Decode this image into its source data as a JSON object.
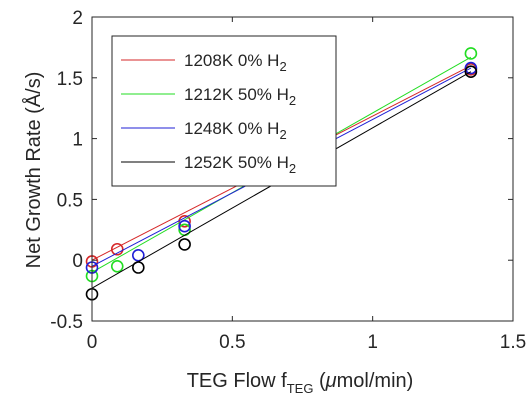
{
  "chart_data": {
    "type": "scatter",
    "xlabel": {
      "prefix": "TEG Flow f",
      "subscript": "TEG",
      "mu": "μ",
      "suffix": "mol/min)",
      "open_paren": " ("
    },
    "ylabel": "Net Growth Rate (Å/s)",
    "xlim": [
      0,
      1.5
    ],
    "ylim": [
      -0.5,
      2
    ],
    "x_ticks": [
      0,
      0.5,
      1,
      1.5
    ],
    "x_tick_labels": [
      "0",
      "0.5",
      "1",
      "1.5"
    ],
    "y_ticks": [
      -0.5,
      0,
      0.5,
      1,
      1.5,
      2
    ],
    "y_tick_labels": [
      "-0.5",
      "0",
      "0.5",
      "1",
      "1.5",
      "2"
    ],
    "grid": false,
    "legend_position": "top-left",
    "series": [
      {
        "name": "1208K  0% H",
        "name_sub": "2",
        "color": "#d62728",
        "points": [
          [
            0,
            -0.01
          ],
          [
            0.09,
            0.09
          ],
          [
            0.33,
            0.32
          ],
          [
            1.35,
            1.57
          ]
        ],
        "fit_line": [
          [
            0,
            0.0
          ],
          [
            1.35,
            1.6
          ]
        ]
      },
      {
        "name": "1212K 50% H",
        "name_sub": "2",
        "color": "#22dd22",
        "points": [
          [
            0,
            -0.13
          ],
          [
            0.09,
            -0.05
          ],
          [
            0.33,
            0.25
          ],
          [
            1.35,
            1.7
          ]
        ],
        "fit_line": [
          [
            0,
            -0.1
          ],
          [
            1.35,
            1.67
          ]
        ]
      },
      {
        "name": "1248K  0% H",
        "name_sub": "2",
        "color": "#1f1fd6",
        "points": [
          [
            0,
            -0.06
          ],
          [
            0.165,
            0.04
          ],
          [
            0.33,
            0.28
          ],
          [
            1.35,
            1.58
          ]
        ],
        "fit_line": [
          [
            0,
            -0.05
          ],
          [
            1.35,
            1.58
          ]
        ]
      },
      {
        "name": "1252K 50% H",
        "name_sub": "2",
        "color": "#000000",
        "points": [
          [
            0,
            -0.28
          ],
          [
            0.165,
            -0.06
          ],
          [
            0.33,
            0.13
          ],
          [
            1.35,
            1.55
          ]
        ],
        "fit_line": [
          [
            0,
            -0.23
          ],
          [
            1.35,
            1.55
          ]
        ]
      }
    ]
  }
}
